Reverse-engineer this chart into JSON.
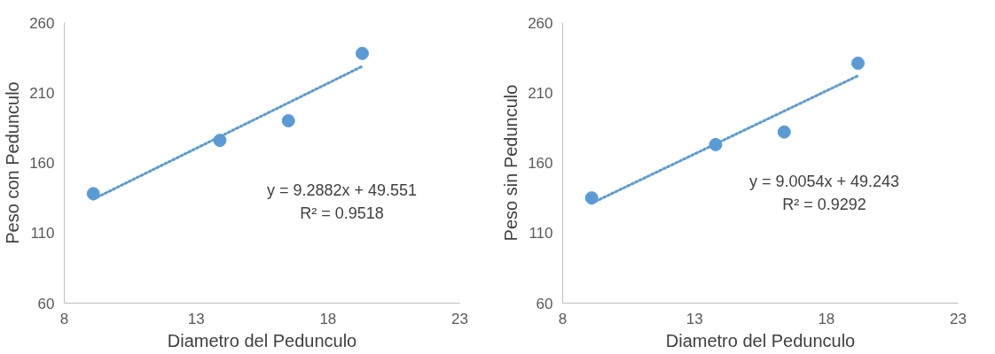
{
  "chart_data": [
    {
      "type": "scatter",
      "xlabel": "Diametro del Pedunculo",
      "ylabel": "Peso con Pedunculo",
      "xlim": [
        8,
        23
      ],
      "xticks": [
        8,
        13,
        18,
        23
      ],
      "ylim": [
        60,
        260
      ],
      "yticks": [
        60,
        110,
        160,
        210,
        260
      ],
      "grid": false,
      "series": [
        {
          "color": "#5b9bd5",
          "marker": "circle",
          "x": [
            9.1,
            13.9,
            16.5,
            19.3
          ],
          "values": [
            138,
            176,
            190,
            238
          ]
        },
        {
          "type": "line",
          "color": "#5b9bd5",
          "line_style": "dotted",
          "marker": "none",
          "x": [
            9.1,
            19.3
          ],
          "values": [
            134.1,
            228.8
          ]
        }
      ],
      "annotations": [
        "y = 9.2882x + 49.551",
        "R² = 0.9518"
      ]
    },
    {
      "type": "scatter",
      "xlabel": "Diametro del Pedunculo",
      "ylabel": "Peso sin Pedunculo",
      "xlim": [
        8,
        23
      ],
      "xticks": [
        8,
        13,
        18,
        23
      ],
      "ylim": [
        60,
        260
      ],
      "yticks": [
        60,
        110,
        160,
        210,
        260
      ],
      "grid": false,
      "series": [
        {
          "color": "#5b9bd5",
          "marker": "circle",
          "x": [
            9.1,
            13.8,
            16.4,
            19.2
          ],
          "values": [
            135,
            173,
            182,
            231
          ]
        },
        {
          "type": "line",
          "color": "#5b9bd5",
          "line_style": "dotted",
          "marker": "none",
          "x": [
            9.1,
            19.2
          ],
          "values": [
            131.2,
            222.1
          ]
        }
      ],
      "annotations": [
        "y = 9.0054x + 49.243",
        "R² = 0.9292"
      ]
    }
  ]
}
